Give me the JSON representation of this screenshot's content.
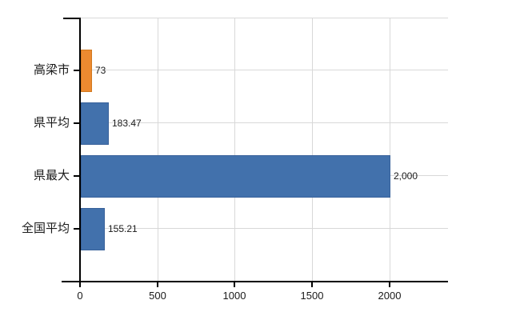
{
  "chart_data": {
    "type": "bar",
    "orientation": "horizontal",
    "title": "",
    "categories": [
      "高梁市",
      "県平均",
      "県最大",
      "全国平均"
    ],
    "values": [
      73,
      183.47,
      2000,
      155.21
    ],
    "value_labels": [
      "73",
      "183.47",
      "2,000",
      "155.21"
    ],
    "bar_colors": [
      "#ec8a30",
      "#4271ac",
      "#4271ac",
      "#4271ac"
    ],
    "bar_border_colors": [
      "#d2791f",
      "#38619a",
      "#38619a",
      "#38619a"
    ],
    "x_ticks": [
      0,
      500,
      1000,
      1500,
      2000
    ],
    "x_tick_labels": [
      "0",
      "500",
      "1000",
      "1500",
      "2000"
    ],
    "xlim": [
      0,
      2380
    ],
    "grid": true,
    "legend": "none",
    "gridlines_horizontal_at_category_centers": true,
    "colors": {
      "axis": "#000000",
      "grid": "#d8d8d8",
      "text": "#1a1a1a",
      "background": "#ffffff"
    }
  }
}
